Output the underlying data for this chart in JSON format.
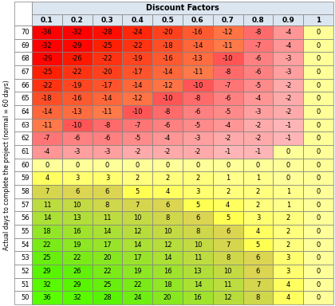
{
  "title": "Discount Factors",
  "ylabel": "Actual days to complete the project (normal = 60 days)",
  "col_headers": [
    "0.1",
    "0.2",
    "0.3",
    "0.4",
    "0.5",
    "0.6",
    "0.7",
    "0.8",
    "0.9",
    "1"
  ],
  "row_headers": [
    70,
    69,
    68,
    67,
    66,
    65,
    64,
    63,
    62,
    61,
    60,
    59,
    58,
    57,
    56,
    55,
    54,
    53,
    52,
    51,
    50
  ],
  "table_data": [
    [
      -36,
      -32,
      -28,
      -24,
      -20,
      -16,
      -12,
      -8,
      -4,
      0
    ],
    [
      -32,
      -29,
      -25,
      -22,
      -18,
      -14,
      -11,
      -7,
      -4,
      0
    ],
    [
      -29,
      -26,
      -22,
      -19,
      -16,
      -13,
      -10,
      -6,
      -3,
      0
    ],
    [
      -25,
      -22,
      -20,
      -17,
      -14,
      -11,
      -8,
      -6,
      -3,
      0
    ],
    [
      -22,
      -19,
      -17,
      -14,
      -12,
      -10,
      -7,
      -5,
      -2,
      0
    ],
    [
      -18,
      -16,
      -14,
      -12,
      -10,
      -8,
      -6,
      -4,
      -2,
      0
    ],
    [
      -14,
      -13,
      -11,
      -10,
      -8,
      -6,
      -5,
      -3,
      -2,
      0
    ],
    [
      -11,
      -10,
      -8,
      -7,
      -6,
      -5,
      -4,
      -2,
      -1,
      0
    ],
    [
      -7,
      -6,
      -6,
      -5,
      -4,
      -3,
      -2,
      -2,
      -1,
      0
    ],
    [
      -4,
      -3,
      -3,
      -2,
      -2,
      -2,
      -1,
      -1,
      0,
      0
    ],
    [
      0,
      0,
      0,
      0,
      0,
      0,
      0,
      0,
      0,
      0
    ],
    [
      4,
      3,
      3,
      2,
      2,
      2,
      1,
      1,
      0,
      0
    ],
    [
      7,
      6,
      6,
      5,
      4,
      3,
      2,
      2,
      1,
      0
    ],
    [
      11,
      10,
      8,
      7,
      6,
      5,
      4,
      2,
      1,
      0
    ],
    [
      14,
      13,
      11,
      10,
      8,
      6,
      5,
      3,
      2,
      0
    ],
    [
      18,
      16,
      14,
      12,
      10,
      8,
      6,
      4,
      2,
      0
    ],
    [
      22,
      19,
      17,
      14,
      12,
      10,
      7,
      5,
      2,
      0
    ],
    [
      25,
      22,
      20,
      17,
      14,
      11,
      8,
      6,
      3,
      0
    ],
    [
      29,
      26,
      22,
      19,
      16,
      13,
      10,
      6,
      3,
      0
    ],
    [
      32,
      29,
      25,
      22,
      18,
      14,
      11,
      7,
      4,
      0
    ],
    [
      36,
      32,
      28,
      24,
      20,
      16,
      12,
      8,
      4,
      0
    ]
  ],
  "bg_color": "#ffffff",
  "col_header_bg": "#dce6f1",
  "border_color": "#7f7f7f",
  "title_fontsize": 7,
  "cell_fontsize": 6,
  "header_fontsize": 6.5,
  "ylabel_fontsize": 5.5
}
